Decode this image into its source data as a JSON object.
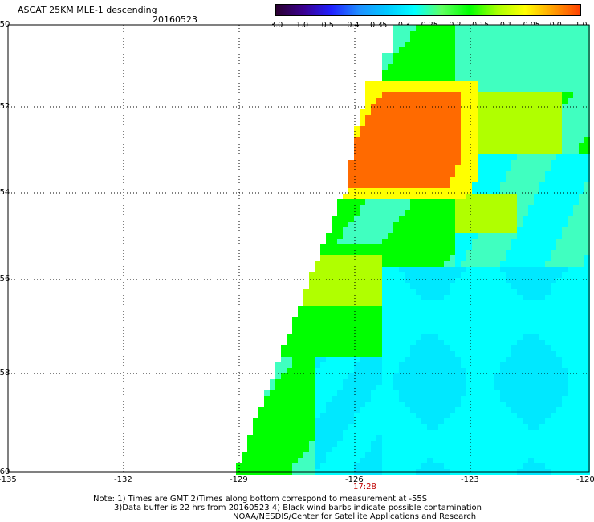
{
  "header": {
    "title": "ASCAT 25KM MLE-1 descending",
    "date": "20160523"
  },
  "colorbar": {
    "labels": [
      "-3.0",
      "-1.0",
      "-0.5",
      "-0.4",
      "-0.35",
      "-0.3",
      "-0.25",
      "-0.2",
      "-0.15",
      "-0.1",
      "-0.05",
      "0.0",
      "1.0"
    ],
    "colors": [
      "#2a0030",
      "#3a0090",
      "#2020ff",
      "#1f8fff",
      "#00c8ff",
      "#00ffff",
      "#60ff60",
      "#00ff00",
      "#a8ff00",
      "#ffff00",
      "#ffa000",
      "#ff4000"
    ]
  },
  "map": {
    "lat_labels": [
      "-50",
      "-52",
      "-54",
      "-56",
      "-58",
      "-60"
    ],
    "lon_labels": [
      "-135",
      "-132",
      "-129",
      "-126",
      "-123",
      "-120"
    ],
    "pass_time": "17:28",
    "palette": {
      "cyan": "#00ffff",
      "aqua": "#40ffc0",
      "green": "#00ff00",
      "yellow_green": "#b0ff00",
      "yellow": "#ffff00",
      "orange": "#ff8c00",
      "deep_orange": "#ff6a00",
      "light_blue": "#00e8ff"
    }
  },
  "notes": {
    "line1": "Note: 1) Times are GMT 2)Times along bottom correspond to measurement at -55S",
    "line2": "3)Data buffer is 22 hrs from 20160523 4) Black wind barbs indicate possible contamination",
    "line3": "NOAA/NESDIS/Center for Satellite Applications and Research"
  }
}
